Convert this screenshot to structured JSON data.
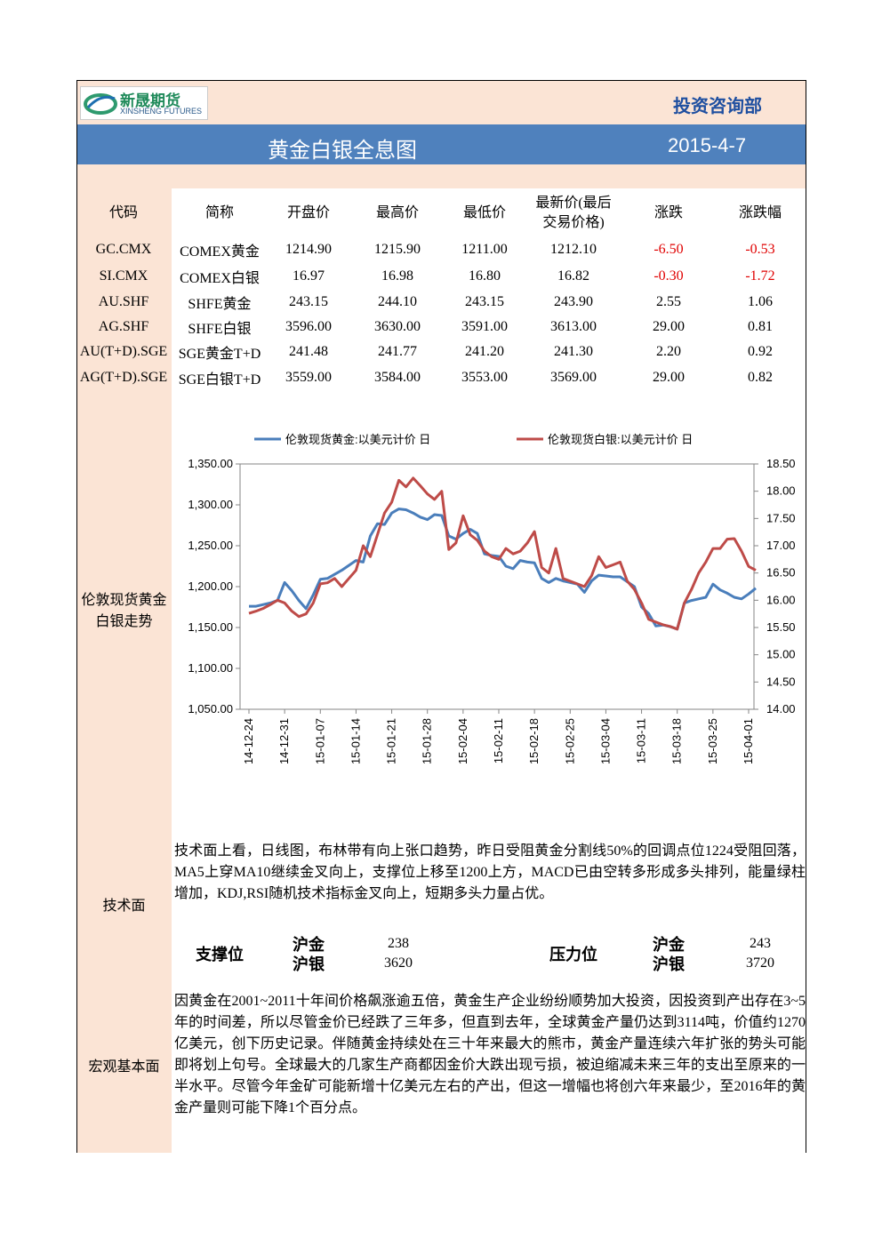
{
  "header": {
    "logo_name": "新晟期货",
    "logo_sub": "XINSHENG FUTURES",
    "department": "投资咨询部",
    "title": "黄金白银全息图",
    "date": "2015-4-7"
  },
  "table": {
    "columns": [
      "代码",
      "简称",
      "开盘价",
      "最高价",
      "最低价",
      "最新价(最后交易价格)",
      "涨跌",
      "涨跌幅"
    ],
    "rows": [
      [
        "GC.CMX",
        "COMEX黄金",
        "1214.90",
        "1215.90",
        "1211.00",
        "1212.10",
        "-6.50",
        "-0.53"
      ],
      [
        "SI.CMX",
        "COMEX白银",
        "16.97",
        "16.98",
        "16.80",
        "16.82",
        "-0.30",
        "-1.72"
      ],
      [
        "AU.SHF",
        "SHFE黄金",
        "243.15",
        "244.10",
        "243.15",
        "243.90",
        "2.55",
        "1.06"
      ],
      [
        "AG.SHF",
        "SHFE白银",
        "3596.00",
        "3630.00",
        "3591.00",
        "3613.00",
        "29.00",
        "0.81"
      ],
      [
        "AU(T+D).SGE",
        "SGE黄金T+D",
        "241.48",
        "241.77",
        "241.20",
        "241.30",
        "2.20",
        "0.92"
      ],
      [
        "AG(T+D).SGE",
        "SGE白银T+D",
        "3559.00",
        "3584.00",
        "3553.00",
        "3569.00",
        "29.00",
        "0.82"
      ]
    ]
  },
  "chart_section": {
    "label": "伦敦现货黄金白银走势"
  },
  "chart_data": {
    "type": "line",
    "categories": [
      "14-12-24",
      null,
      null,
      null,
      null,
      "14-12-31",
      null,
      null,
      null,
      null,
      "15-01-07",
      null,
      null,
      null,
      null,
      "15-01-14",
      null,
      null,
      null,
      null,
      "15-01-21",
      null,
      null,
      null,
      null,
      "15-01-28",
      null,
      null,
      null,
      null,
      "15-02-04",
      null,
      null,
      null,
      null,
      "15-02-11",
      null,
      null,
      null,
      null,
      "15-02-18",
      null,
      null,
      null,
      null,
      "15-02-25",
      null,
      null,
      null,
      null,
      "15-03-04",
      null,
      null,
      null,
      null,
      "15-03-11",
      null,
      null,
      null,
      null,
      "15-03-18",
      null,
      null,
      null,
      null,
      "15-03-25",
      null,
      null,
      null,
      null,
      "15-04-01",
      null
    ],
    "series": [
      {
        "name": "伦敦现货黄金:以美元计价 日",
        "color": "#4a7ebb",
        "values": [
          1176,
          1176,
          1178,
          1180,
          1183,
          1205,
          1195,
          1183,
          1173,
          1190,
          1209,
          1210,
          1215,
          1220,
          1226,
          1232,
          1230,
          1262,
          1277,
          1276,
          1290,
          1295,
          1294,
          1290,
          1285,
          1282,
          1288,
          1287,
          1262,
          1258,
          1265,
          1270,
          1265,
          1240,
          1238,
          1237,
          1225,
          1222,
          1232,
          1230,
          1229,
          1210,
          1205,
          1210,
          1207,
          1205,
          1203,
          1193,
          1207,
          1214,
          1213,
          1212,
          1212,
          1206,
          1200,
          1175,
          1167,
          1152,
          1153,
          1151,
          1148,
          1180,
          1183,
          1185,
          1187,
          1203,
          1196,
          1192,
          1187,
          1185,
          1191,
          1198
        ]
      },
      {
        "name": "伦敦现货白银:以美元计价 日",
        "color": "#be4b48",
        "axis": "y2",
        "values": [
          15.76,
          15.8,
          15.85,
          15.92,
          16.0,
          15.95,
          15.8,
          15.7,
          15.75,
          15.95,
          16.3,
          16.32,
          16.4,
          16.25,
          16.4,
          16.55,
          17.0,
          16.8,
          17.2,
          17.6,
          17.8,
          18.2,
          18.08,
          18.24,
          18.1,
          17.95,
          17.85,
          18.0,
          16.93,
          17.05,
          17.55,
          17.2,
          17.1,
          16.9,
          16.8,
          16.75,
          16.95,
          16.85,
          16.9,
          17.05,
          17.26,
          16.6,
          16.5,
          16.95,
          16.4,
          16.35,
          16.3,
          16.25,
          16.45,
          16.8,
          16.6,
          16.65,
          16.7,
          16.35,
          16.2,
          15.95,
          15.65,
          15.6,
          15.55,
          15.52,
          15.47,
          15.95,
          16.2,
          16.5,
          16.7,
          16.95,
          16.95,
          17.12,
          17.13,
          16.9,
          16.62,
          16.55
        ]
      }
    ],
    "ylim": [
      1050,
      1350
    ],
    "yticks": [
      {
        "value": 1050,
        "label": "1,050.00"
      },
      {
        "value": 1100,
        "label": "1,100.00"
      },
      {
        "value": 1150,
        "label": "1,150.00"
      },
      {
        "value": 1200,
        "label": "1,200.00"
      },
      {
        "value": 1250,
        "label": "1,250.00"
      },
      {
        "value": 1300,
        "label": "1,300.00"
      },
      {
        "value": 1350,
        "label": "1,350.00"
      }
    ],
    "y2lim": [
      14,
      18.5
    ],
    "y2ticks": [
      {
        "value": 14,
        "label": "14.00"
      },
      {
        "value": 14.5,
        "label": "14.50"
      },
      {
        "value": 15,
        "label": "15.00"
      },
      {
        "value": 15.5,
        "label": "15.50"
      },
      {
        "value": 16,
        "label": "16.00"
      },
      {
        "value": 16.5,
        "label": "16.50"
      },
      {
        "value": 17,
        "label": "17.00"
      },
      {
        "value": 17.5,
        "label": "17.50"
      },
      {
        "value": 18,
        "label": "18.00"
      },
      {
        "value": 18.5,
        "label": "18.50"
      }
    ],
    "grid": false,
    "legend": "top"
  },
  "technical": {
    "label": "技术面",
    "text": "技术面上看，日线图，布林带有向上张口趋势，昨日受阻黄金分割线50%的回调点位1224受阻回落，MA5上穿MA10继续金叉向上，支撑位上移至1200上方，MACD已由空转多形成多头排列，能量绿柱增加，KDJ,RSI随机技术指标金叉向上，短期多头力量占优。"
  },
  "levels": {
    "support_label": "支撑位",
    "resistance_label": "压力位",
    "support": [
      {
        "name": "沪金",
        "value": "238"
      },
      {
        "name": "沪银",
        "value": "3620"
      }
    ],
    "resistance": [
      {
        "name": "沪金",
        "value": "243"
      },
      {
        "name": "沪银",
        "value": "3720"
      }
    ]
  },
  "macro": {
    "label": "宏观基本面",
    "text": "因黄金在2001~2011十年间价格飙涨逾五倍，黄金生产企业纷纷顺势加大投资，因投资到产出存在3~5年的时间差，所以尽管金价已经跌了三年多，但直到去年，全球黄金产量仍达到3114吨，价值约1270亿美元，创下历史记录。伴随黄金持续处在三十年来最大的熊市，黄金产量连续六年扩张的势头可能即将划上句号。全球最大的几家生产商都因金价大跌出现亏损，被迫缩减未来三年的支出至原来的一半水平。尽管今年金矿可能新增十亿美元左右的产出，但这一增幅也将创六年来最少，至2016年的黄金产量则可能下降1个百分点。"
  }
}
